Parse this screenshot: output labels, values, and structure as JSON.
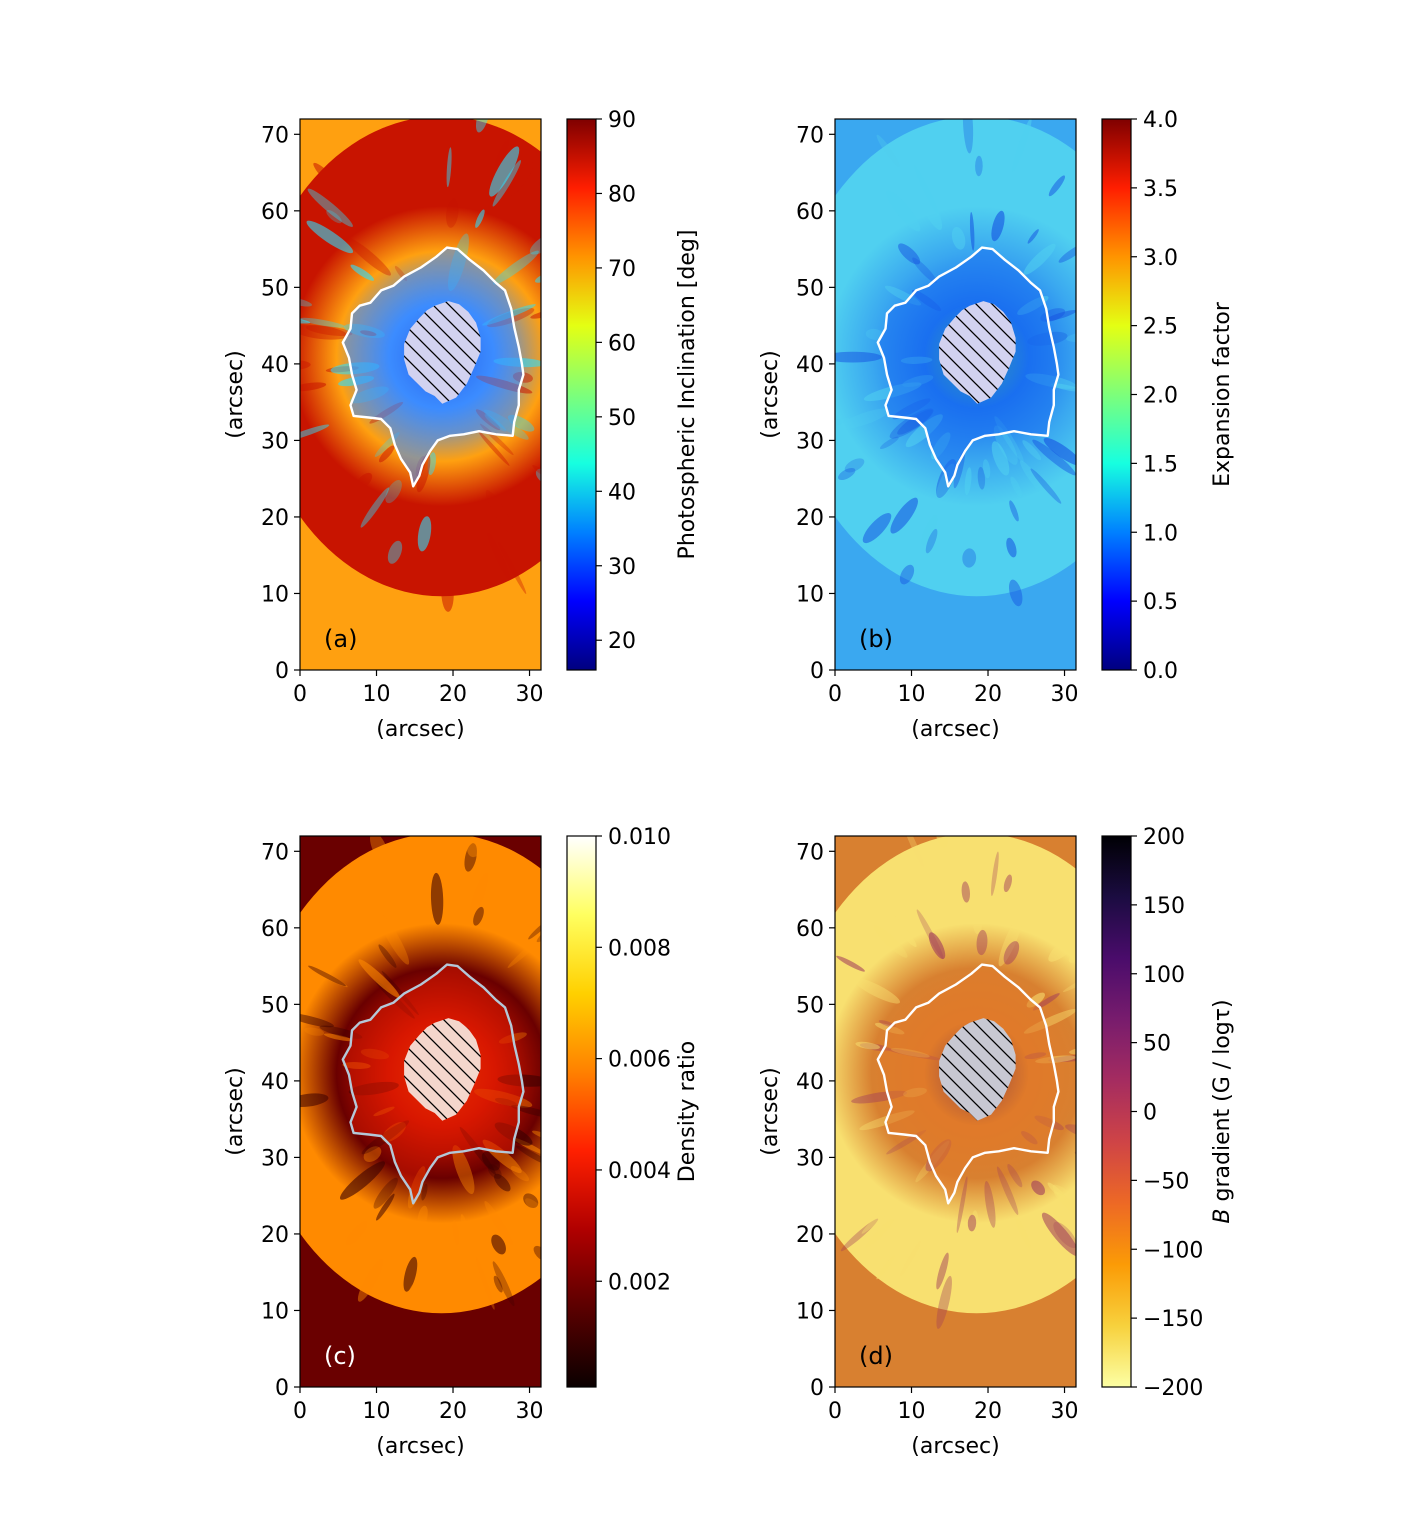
{
  "chart_data": [
    {
      "type": "heatmap",
      "panel_label": "(a)",
      "panel_label_color": "#000000",
      "xlabel": "(arcsec)",
      "ylabel": "(arcsec)",
      "xlim": [
        0,
        31.5
      ],
      "ylim": [
        0,
        72
      ],
      "xticks": [
        0,
        10,
        20,
        30
      ],
      "yticks": [
        0,
        10,
        20,
        30,
        40,
        50,
        60,
        70
      ],
      "colorbar": {
        "label": "Photospheric Inclination [deg]",
        "range": [
          16,
          90
        ],
        "ticks": [
          20,
          30,
          40,
          50,
          60,
          70,
          80,
          90
        ],
        "tick_labels": [
          "20",
          "30",
          "40",
          "50",
          "60",
          "70",
          "80",
          "90"
        ],
        "colormap": "jet",
        "stops": [
          "#00007f",
          "#0000ff",
          "#0080ff",
          "#17ffe0",
          "#7dff7a",
          "#e4ff13",
          "#ff9400",
          "#ff1e00",
          "#7f0000"
        ]
      },
      "field": {
        "umbra": "#0a2ed8",
        "penumbra": "#3c8cff",
        "outer": "#ffa010",
        "edge": "#c81400",
        "streak": "#2ae0ff"
      },
      "contour_color": "#ffffff",
      "hatch_fill": "#d2d2f0",
      "annotation": "umbra (hatched) and penumbral boundary contour"
    },
    {
      "type": "heatmap",
      "panel_label": "(b)",
      "panel_label_color": "#000000",
      "xlabel": "(arcsec)",
      "ylabel": "(arcsec)",
      "xlim": [
        0,
        31.5
      ],
      "ylim": [
        0,
        72
      ],
      "xticks": [
        0,
        10,
        20,
        30
      ],
      "yticks": [
        0,
        10,
        20,
        30,
        40,
        50,
        60,
        70
      ],
      "colorbar": {
        "label": "Expansion factor",
        "range": [
          0,
          4
        ],
        "ticks": [
          0,
          0.5,
          1,
          1.5,
          2,
          2.5,
          3,
          3.5,
          4
        ],
        "tick_labels": [
          "0.0",
          "0.5",
          "1.0",
          "1.5",
          "2.0",
          "2.5",
          "3.0",
          "3.5",
          "4.0"
        ],
        "colormap": "jet",
        "stops": [
          "#00007f",
          "#0000ff",
          "#0080ff",
          "#17ffe0",
          "#7dff7a",
          "#e4ff13",
          "#ff9400",
          "#ff1e00",
          "#7f0000"
        ]
      },
      "field": {
        "umbra": "#50d060",
        "penumbra": "#1a70f0",
        "outer": "#3aa8f0",
        "edge": "#50d0f0",
        "streak": "#1450e0"
      },
      "contour_color": "#ffffff",
      "hatch_fill": "#d2d2f0",
      "annotation": "umbra (hatched) and penumbral boundary contour"
    },
    {
      "type": "heatmap",
      "panel_label": "(c)",
      "panel_label_color": "#ffffff",
      "xlabel": "(arcsec)",
      "ylabel": "(arcsec)",
      "xlim": [
        0,
        31.5
      ],
      "ylim": [
        0,
        72
      ],
      "xticks": [
        0,
        10,
        20,
        30
      ],
      "yticks": [
        0,
        10,
        20,
        30,
        40,
        50,
        60,
        70
      ],
      "colorbar": {
        "label": "Density ratio",
        "range": [
          0.0001,
          0.01
        ],
        "ticks": [
          0.002,
          0.004,
          0.006,
          0.008,
          0.01
        ],
        "tick_labels": [
          "0.002",
          "0.004",
          "0.006",
          "0.008",
          "0.010"
        ],
        "colormap": "hot",
        "stops": [
          "#0b0000",
          "#5a0000",
          "#b00000",
          "#ff2000",
          "#ff8000",
          "#ffd000",
          "#ffff60",
          "#ffffff"
        ]
      },
      "field": {
        "umbra": "#ff4a00",
        "penumbra": "#d81800",
        "outer": "#6a0000",
        "edge": "#ff8a00",
        "streak": "#3a0000"
      },
      "contour_color": "#b4c8d8",
      "hatch_fill": "#f4d6cc",
      "annotation": "umbra (hatched) and penumbral boundary contour"
    },
    {
      "type": "heatmap",
      "panel_label": "(d)",
      "panel_label_color": "#000000",
      "xlabel": "(arcsec)",
      "ylabel": "(arcsec)",
      "xlim": [
        0,
        31.5
      ],
      "ylim": [
        0,
        72
      ],
      "xticks": [
        0,
        10,
        20,
        30
      ],
      "yticks": [
        0,
        10,
        20,
        30,
        40,
        50,
        60,
        70
      ],
      "colorbar": {
        "label": "B gradient (G / logτ)",
        "label_italic": "B",
        "label_rest": " gradient (G / logτ)",
        "range": [
          -200,
          200
        ],
        "ticks": [
          -200,
          -150,
          -100,
          -50,
          0,
          50,
          100,
          150,
          200
        ],
        "tick_labels": [
          "−200",
          "−150",
          "−100",
          "−50",
          "0",
          "50",
          "100",
          "150",
          "200"
        ],
        "colormap": "inferno_r",
        "stops": [
          "#fcffa4",
          "#f7d13d",
          "#fb9b06",
          "#ed6925",
          "#cf4446",
          "#a52c60",
          "#781c6d",
          "#4a0c6b",
          "#1b0c41",
          "#000004"
        ]
      },
      "field": {
        "umbra": "#3a0a5a",
        "penumbra": "#e07a2a",
        "outer": "#d88030",
        "edge": "#f8e070",
        "streak": "#a03a5a"
      },
      "contour_color": "#ffffff",
      "hatch_fill": "#c8c8d2",
      "annotation": "umbra (hatched) and penumbral boundary contour"
    }
  ]
}
